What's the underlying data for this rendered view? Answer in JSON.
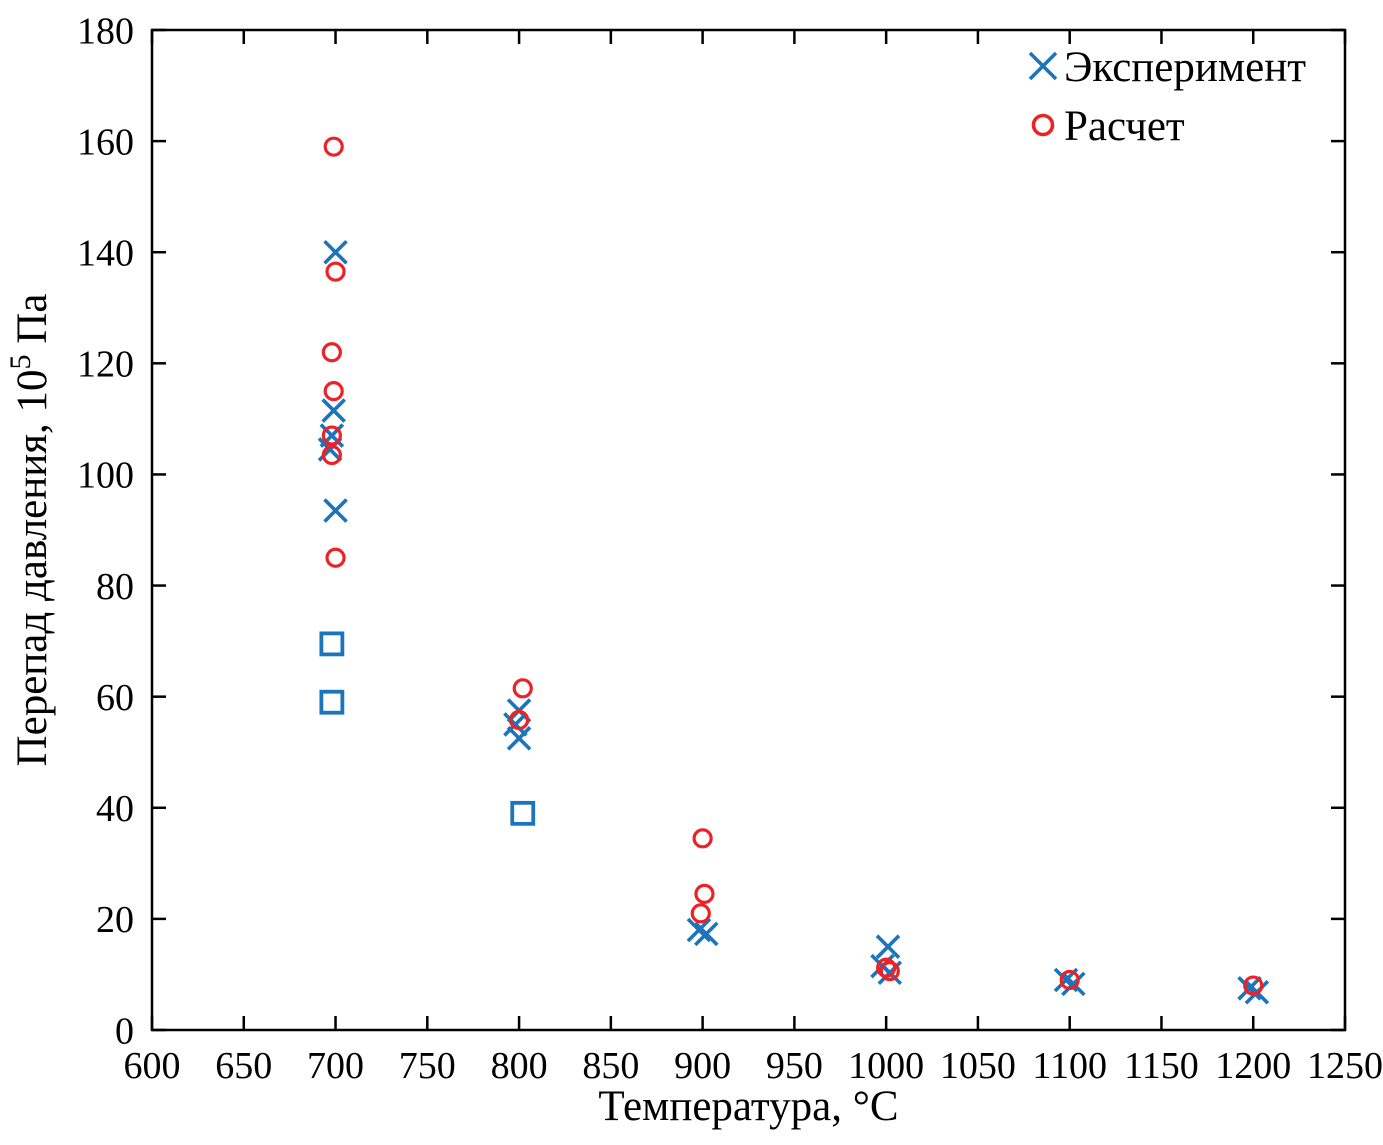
{
  "page": {
    "background": "#ffffff"
  },
  "chart_data": {
    "type": "scatter",
    "title": "",
    "xlabel": "Температура, °C",
    "ylabel_pre": "Перепад давления, 10",
    "ylabel_sup": "5",
    "ylabel_post": " Па",
    "xlim": [
      600,
      1250
    ],
    "ylim": [
      0,
      180
    ],
    "xticks": [
      600,
      650,
      700,
      750,
      800,
      850,
      900,
      950,
      1000,
      1050,
      1100,
      1150,
      1200,
      1250
    ],
    "yticks": [
      0,
      20,
      40,
      60,
      80,
      100,
      120,
      140,
      160,
      180
    ],
    "grid": false,
    "legend_position": "top-right-inside",
    "axis_color": "#000000",
    "legend": [
      {
        "label": "Эксперимент",
        "marker": "x",
        "color": "#1b75bc"
      },
      {
        "label": "Расчет",
        "marker": "o",
        "color": "#ec2227"
      }
    ],
    "series": [
      {
        "name": "Эксперимент",
        "marker": "x",
        "color": "#1b75bc",
        "in_legend": true,
        "points": [
          [
            700,
            140
          ],
          [
            699,
            111.5
          ],
          [
            698,
            107
          ],
          [
            697,
            104.5
          ],
          [
            700,
            93.5
          ],
          [
            800,
            57.5
          ],
          [
            798,
            55
          ],
          [
            800,
            52.5
          ],
          [
            898,
            18
          ],
          [
            902,
            17.3
          ],
          [
            1001,
            15
          ],
          [
            998,
            11.5
          ],
          [
            1002,
            10.3
          ],
          [
            1098,
            9
          ],
          [
            1102,
            8.3
          ],
          [
            1198,
            7.5
          ],
          [
            1202,
            6.8
          ]
        ]
      },
      {
        "name": "Расчет",
        "marker": "o",
        "color": "#ec2227",
        "in_legend": true,
        "points": [
          [
            699,
            159
          ],
          [
            700,
            136.5
          ],
          [
            698,
            122
          ],
          [
            699,
            115
          ],
          [
            698,
            107
          ],
          [
            698,
            103.5
          ],
          [
            700,
            85
          ],
          [
            802,
            61.5
          ],
          [
            800,
            55.8
          ],
          [
            900,
            34.5
          ],
          [
            901,
            24.5
          ],
          [
            899,
            21
          ],
          [
            1000,
            11.2
          ],
          [
            1002,
            10.6
          ],
          [
            1100,
            9
          ],
          [
            1200,
            8
          ]
        ]
      },
      {
        "name": "Эксперимент (квадраты)",
        "marker": "square",
        "color": "#1b75bc",
        "in_legend": false,
        "points": [
          [
            698,
            69.5
          ],
          [
            698,
            59
          ],
          [
            802,
            39
          ]
        ]
      }
    ]
  }
}
